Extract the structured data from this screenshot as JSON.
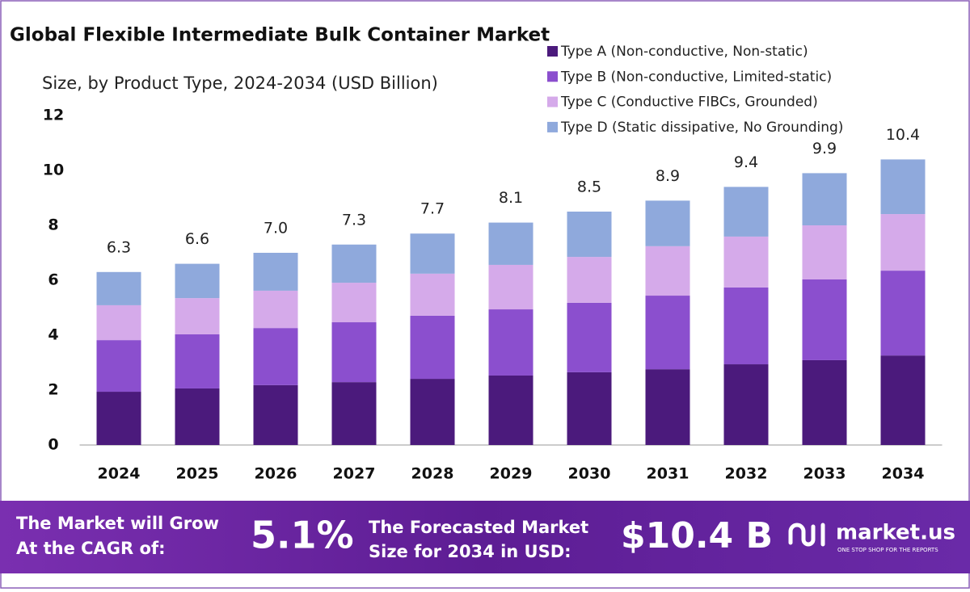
{
  "chart_data": {
    "type": "stacked_bar",
    "title": "Global Flexible Intermediate Bulk Container Market",
    "subtitle": "Size, by Product Type, 2024-2034 (USD Billion)",
    "categories": [
      "2024",
      "2025",
      "2026",
      "2027",
      "2028",
      "2029",
      "2030",
      "2031",
      "2032",
      "2033",
      "2034"
    ],
    "series": [
      {
        "name": "Type A (Non-conductive, Non-static)",
        "color": "#4b1a7c",
        "values": [
          1.94,
          2.06,
          2.18,
          2.29,
          2.41,
          2.53,
          2.65,
          2.76,
          2.94,
          3.09,
          3.26
        ]
      },
      {
        "name": "Type B (Non-conductive, Limited-static)",
        "color": "#8b4fce",
        "values": [
          1.88,
          1.97,
          2.08,
          2.18,
          2.3,
          2.41,
          2.53,
          2.68,
          2.8,
          2.94,
          3.09
        ]
      },
      {
        "name": "Type C (Conductive FIBCs, Grounded)",
        "color": "#d5aaea",
        "values": [
          1.27,
          1.32,
          1.36,
          1.44,
          1.53,
          1.62,
          1.67,
          1.8,
          1.85,
          1.97,
          2.06
        ]
      },
      {
        "name": "Type D (Static dissipative, No Grounding)",
        "color": "#8fa9dc",
        "values": [
          1.21,
          1.25,
          1.38,
          1.39,
          1.46,
          1.54,
          1.65,
          1.66,
          1.81,
          1.9,
          1.99
        ]
      }
    ],
    "totals": [
      6.3,
      6.6,
      7.0,
      7.3,
      7.7,
      8.1,
      8.5,
      8.9,
      9.4,
      9.9,
      10.4
    ],
    "total_labels": [
      "6.3",
      "6.6",
      "7.0",
      "7.3",
      "7.7",
      "8.1",
      "8.5",
      "8.9",
      "9.4",
      "9.9",
      "10.4"
    ],
    "ylim": [
      0,
      12
    ],
    "yticks": [
      0,
      2,
      4,
      6,
      8,
      10,
      12
    ],
    "grid": false,
    "legend": "top-right"
  },
  "footer": {
    "cagr_label": [
      "The Market will Grow",
      "At the CAGR of:"
    ],
    "cagr": "5.1%",
    "forecast_label": [
      "The Forecasted Market",
      "Size for 2034 in USD:"
    ],
    "forecast": "$10.4 B",
    "brand": "market.us",
    "tagline": "ONE STOP SHOP FOR THE REPORTS"
  }
}
